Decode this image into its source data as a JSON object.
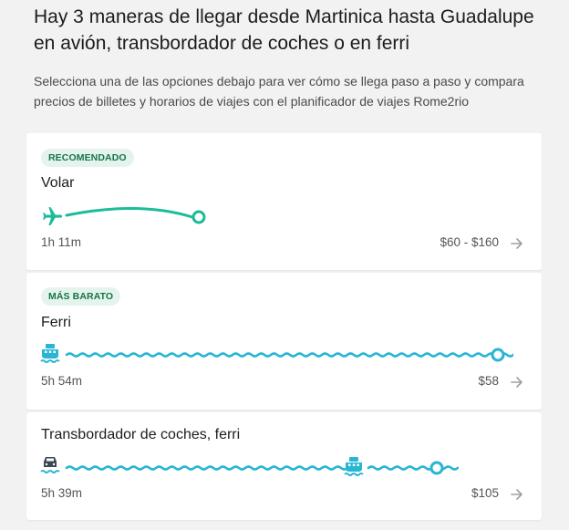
{
  "header": {
    "title": "Hay 3 maneras de llegar desde Martinica hasta Guadalupe en avión, transbordador de coches o en ferri",
    "subtitle": "Selecciona una de las opciones debajo para ver cómo se llega paso a paso y compara precios de billetes y horarios de viajes con el planificador de viajes Rome2rio"
  },
  "options": [
    {
      "badge": "RECOMENDADO",
      "mode": "Volar",
      "duration": "1h 11m",
      "price": "$60 - $160",
      "icons": [
        "plane-icon"
      ],
      "line_color": "#1bbc9b"
    },
    {
      "badge": "MÁS BARATO",
      "mode": "Ferri",
      "duration": "5h 54m",
      "price": "$58",
      "icons": [
        "ferry-icon"
      ],
      "line_color": "#29b6d3"
    },
    {
      "badge": "",
      "mode": "Transbordador de coches, ferri",
      "duration": "5h 39m",
      "price": "$105",
      "icons": [
        "car-ferry-icon",
        "ferry-icon"
      ],
      "line_color": "#29b6d3"
    }
  ],
  "colors": {
    "badge_bg": "#e4f4ec",
    "badge_text": "#17734a",
    "flight": "#1bbc9b",
    "ferry": "#29b6d3"
  }
}
